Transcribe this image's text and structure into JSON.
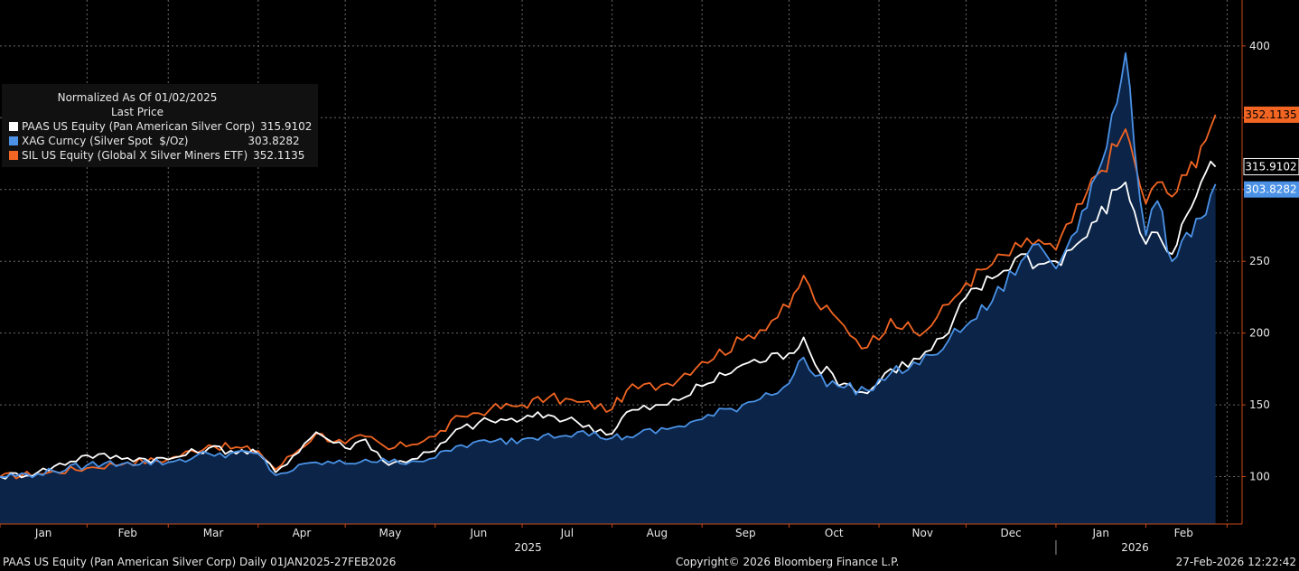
{
  "chart_data": {
    "type": "line",
    "x_axis": {
      "months": [
        "Jan",
        "Feb",
        "Mar",
        "Apr",
        "May",
        "Jun",
        "Jul",
        "Aug",
        "Sep",
        "Oct",
        "Nov",
        "Dec",
        "Jan",
        "Feb"
      ],
      "years": [
        "2025",
        "2026"
      ],
      "start": "2025-01-02",
      "end": "2026-02-27"
    },
    "y_axis": {
      "ticks": [
        100,
        150,
        200,
        250,
        300,
        350,
        400
      ],
      "ylim": [
        67,
        432
      ],
      "side": "right"
    },
    "grid": true,
    "legend": {
      "placement": "top-left",
      "title": "Normalized As Of 01/02/2025",
      "subtitle": "Last Price"
    },
    "series": [
      {
        "key": "sil",
        "name": "SIL US Equity (Global X Silver Miners ETF)",
        "last": "352.1135",
        "color": "#f26522",
        "points": [
          [
            "2025-01-02",
            100
          ],
          [
            "2025-01-15",
            102
          ],
          [
            "2025-02-01",
            106
          ],
          [
            "2025-02-15",
            110
          ],
          [
            "2025-03-01",
            112
          ],
          [
            "2025-03-15",
            122
          ],
          [
            "2025-04-01",
            118
          ],
          [
            "2025-04-07",
            105
          ],
          [
            "2025-04-21",
            130
          ],
          [
            "2025-05-01",
            123
          ],
          [
            "2025-05-08",
            128
          ],
          [
            "2025-05-16",
            119
          ],
          [
            "2025-06-01",
            128
          ],
          [
            "2025-06-10",
            142
          ],
          [
            "2025-06-20",
            147
          ],
          [
            "2025-07-01",
            150
          ],
          [
            "2025-07-10",
            155
          ],
          [
            "2025-07-20",
            152
          ],
          [
            "2025-08-01",
            147
          ],
          [
            "2025-08-06",
            160
          ],
          [
            "2025-08-20",
            165
          ],
          [
            "2025-09-01",
            180
          ],
          [
            "2025-09-15",
            195
          ],
          [
            "2025-10-01",
            218
          ],
          [
            "2025-10-06",
            240
          ],
          [
            "2025-10-10",
            222
          ],
          [
            "2025-10-20",
            205
          ],
          [
            "2025-10-28",
            190
          ],
          [
            "2025-11-05",
            210
          ],
          [
            "2025-11-15",
            198
          ],
          [
            "2025-11-25",
            220
          ],
          [
            "2025-12-01",
            235
          ],
          [
            "2025-12-10",
            248
          ],
          [
            "2025-12-20",
            260
          ],
          [
            "2025-12-26",
            265
          ],
          [
            "2026-01-01",
            258
          ],
          [
            "2026-01-10",
            290
          ],
          [
            "2026-01-15",
            310
          ],
          [
            "2026-01-22",
            330
          ],
          [
            "2026-01-25",
            342
          ],
          [
            "2026-01-28",
            320
          ],
          [
            "2026-02-01",
            290
          ],
          [
            "2026-02-05",
            305
          ],
          [
            "2026-02-10",
            295
          ],
          [
            "2026-02-15",
            310
          ],
          [
            "2026-02-20",
            330
          ],
          [
            "2026-02-25",
            352.1135
          ]
        ]
      },
      {
        "key": "paas",
        "name": "PAAS US Equity (Pan American Silver Corp)",
        "last": "315.9102",
        "color": "#ffffff",
        "points": [
          [
            "2025-01-02",
            100
          ],
          [
            "2025-01-15",
            103
          ],
          [
            "2025-02-01",
            115
          ],
          [
            "2025-02-15",
            113
          ],
          [
            "2025-03-01",
            112
          ],
          [
            "2025-03-15",
            120
          ],
          [
            "2025-04-01",
            116
          ],
          [
            "2025-04-07",
            103
          ],
          [
            "2025-04-21",
            131
          ],
          [
            "2025-05-01",
            120
          ],
          [
            "2025-05-08",
            126
          ],
          [
            "2025-05-16",
            108
          ],
          [
            "2025-06-01",
            118
          ],
          [
            "2025-06-10",
            134
          ],
          [
            "2025-06-20",
            139
          ],
          [
            "2025-07-01",
            140
          ],
          [
            "2025-07-10",
            143
          ],
          [
            "2025-07-20",
            138
          ],
          [
            "2025-08-01",
            130
          ],
          [
            "2025-08-06",
            145
          ],
          [
            "2025-08-20",
            150
          ],
          [
            "2025-09-01",
            163
          ],
          [
            "2025-09-15",
            178
          ],
          [
            "2025-10-01",
            186
          ],
          [
            "2025-10-06",
            197
          ],
          [
            "2025-10-10",
            178
          ],
          [
            "2025-10-20",
            165
          ],
          [
            "2025-10-28",
            158
          ],
          [
            "2025-11-05",
            175
          ],
          [
            "2025-11-15",
            182
          ],
          [
            "2025-11-25",
            200
          ],
          [
            "2025-12-01",
            225
          ],
          [
            "2025-12-10",
            238
          ],
          [
            "2025-12-20",
            255
          ],
          [
            "2025-12-26",
            248
          ],
          [
            "2026-01-01",
            250
          ],
          [
            "2026-01-10",
            265
          ],
          [
            "2026-01-15",
            278
          ],
          [
            "2026-01-22",
            300
          ],
          [
            "2026-01-25",
            305
          ],
          [
            "2026-01-28",
            285
          ],
          [
            "2026-02-01",
            262
          ],
          [
            "2026-02-05",
            270
          ],
          [
            "2026-02-10",
            255
          ],
          [
            "2026-02-15",
            282
          ],
          [
            "2026-02-20",
            305
          ],
          [
            "2026-02-25",
            315.9102
          ]
        ]
      },
      {
        "key": "xag",
        "name": "XAG Curncy (Silver Spot  $/Oz)",
        "last": "303.8282",
        "color": "#4b92e6",
        "points": [
          [
            "2025-01-02",
            100
          ],
          [
            "2025-01-15",
            102
          ],
          [
            "2025-02-01",
            108
          ],
          [
            "2025-02-15",
            110
          ],
          [
            "2025-03-01",
            110
          ],
          [
            "2025-03-15",
            116
          ],
          [
            "2025-04-01",
            116
          ],
          [
            "2025-04-07",
            101
          ],
          [
            "2025-04-21",
            110
          ],
          [
            "2025-05-01",
            109
          ],
          [
            "2025-05-08",
            112
          ],
          [
            "2025-05-16",
            110
          ],
          [
            "2025-06-01",
            113
          ],
          [
            "2025-06-10",
            122
          ],
          [
            "2025-06-20",
            124
          ],
          [
            "2025-07-01",
            126
          ],
          [
            "2025-07-10",
            130
          ],
          [
            "2025-07-20",
            131
          ],
          [
            "2025-08-01",
            127
          ],
          [
            "2025-08-06",
            128
          ],
          [
            "2025-08-20",
            133
          ],
          [
            "2025-09-01",
            140
          ],
          [
            "2025-09-15",
            150
          ],
          [
            "2025-10-01",
            165
          ],
          [
            "2025-10-06",
            183
          ],
          [
            "2025-10-10",
            170
          ],
          [
            "2025-10-20",
            162
          ],
          [
            "2025-10-28",
            160
          ],
          [
            "2025-11-05",
            172
          ],
          [
            "2025-11-15",
            178
          ],
          [
            "2025-11-25",
            195
          ],
          [
            "2025-12-01",
            205
          ],
          [
            "2025-12-10",
            222
          ],
          [
            "2025-12-20",
            250
          ],
          [
            "2025-12-26",
            262
          ],
          [
            "2026-01-01",
            245
          ],
          [
            "2026-01-10",
            285
          ],
          [
            "2026-01-15",
            310
          ],
          [
            "2026-01-22",
            360
          ],
          [
            "2026-01-25",
            395
          ],
          [
            "2026-01-28",
            330
          ],
          [
            "2026-02-01",
            268
          ],
          [
            "2026-02-05",
            292
          ],
          [
            "2026-02-10",
            250
          ],
          [
            "2026-02-15",
            270
          ],
          [
            "2026-02-20",
            280
          ],
          [
            "2026-02-25",
            303.8282
          ]
        ]
      }
    ]
  },
  "footer": {
    "left": "PAAS US Equity (Pan American Silver Corp) Daily 01JAN2025-27FEB2026",
    "center": "Copyright© 2026 Bloomberg Finance L.P.",
    "right": "27-Feb-2026 12:22:42"
  }
}
